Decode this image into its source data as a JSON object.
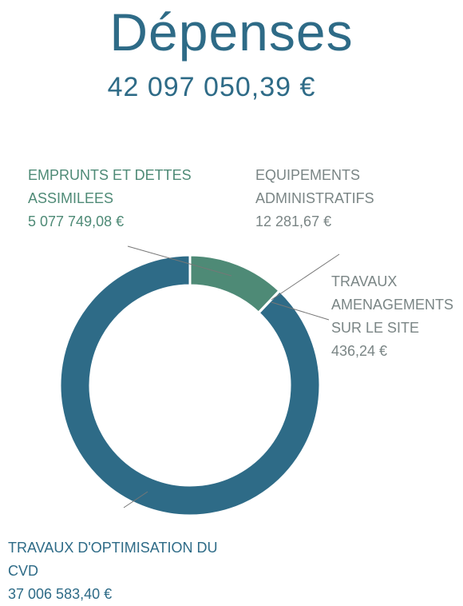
{
  "chart_data": {
    "type": "donut",
    "title": "Dépenses",
    "subtitle": "42 097 050,39 €",
    "categories": [
      "EMPRUNTS ET DETTES ASSIMILEES",
      "EQUIPEMENTS ADMINISTRATIFS",
      "TRAVAUX AMENAGEMENTS SUR LE SITE",
      "TRAVAUX D'OPTIMISATION DU CVD"
    ],
    "values": [
      5077749.08,
      12281.67,
      436.24,
      37006583.4
    ],
    "value_labels": [
      "5 077 749,08 €",
      "12 281,67 €",
      "436,24 €",
      "37 006 583,40 €"
    ],
    "colors": [
      "#4e8a76",
      "#5a8f8a",
      "#6a9aa0",
      "#2e6b87"
    ],
    "label_colors": [
      "#4e8a76",
      "#7a8585",
      "#7a8585",
      "#2e6b87"
    ]
  }
}
